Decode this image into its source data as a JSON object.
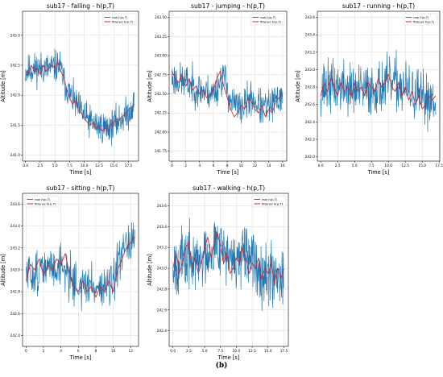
{
  "figure": {
    "caption": "(b)"
  },
  "colors": {
    "raw": "#1f77b4",
    "filtered": "#d62728",
    "grid": "#d9d9d9"
  },
  "chart_data": [
    {
      "type": "line",
      "title": "sub17 - falling - h(p,T)",
      "xlabel": "Time [s]",
      "ylabel": "Altitude [m]",
      "xlim": [
        -0.5,
        19.2
      ],
      "ylim": [
        240.9,
        243.4
      ],
      "xticks": [
        0.0,
        2.5,
        5.0,
        7.5,
        10.0,
        12.5,
        15.0,
        17.5
      ],
      "xticklabels": [
        "0.0",
        "2.5",
        "5.0",
        "7.5",
        "10.0",
        "12.5",
        "15.0",
        "17.5"
      ],
      "yticks": [
        241.0,
        241.5,
        242.0,
        242.5,
        243.0
      ],
      "yticklabels": [
        "241.0",
        "241.5",
        "242.0",
        "242.5",
        "243.0"
      ],
      "grid": true,
      "legend": "top-right",
      "series": [
        {
          "name": "raw h(p,T)",
          "kind": "raw",
          "noise": 0.23,
          "seed": 11,
          "n": 380,
          "trend": [
            [
              0,
              242.4
            ],
            [
              2,
              242.45
            ],
            [
              4,
              242.45
            ],
            [
              5.8,
              242.5
            ],
            [
              6.8,
              242.15
            ],
            [
              8.5,
              241.85
            ],
            [
              10.5,
              241.6
            ],
            [
              12,
              241.5
            ],
            [
              14,
              241.45
            ],
            [
              15.5,
              241.55
            ],
            [
              17.5,
              241.7
            ],
            [
              18.5,
              241.85
            ]
          ]
        },
        {
          "name": "filtered h(p,T)",
          "kind": "filtered",
          "x": [
            0,
            0.5,
            1,
            1.5,
            2,
            2.5,
            3,
            3.5,
            4,
            4.5,
            5,
            5.5,
            6,
            6.5,
            7,
            7.5,
            8,
            8.5,
            9,
            9.5,
            10,
            10.5,
            11,
            11.5,
            12,
            12.5,
            13,
            13.5,
            14,
            14.5,
            15,
            15.5,
            16,
            16.5,
            17,
            17.5,
            18,
            18.5
          ],
          "y": [
            242.4,
            242.35,
            242.5,
            242.4,
            242.45,
            242.35,
            242.5,
            242.4,
            242.45,
            242.5,
            242.45,
            242.55,
            242.4,
            242.3,
            242.1,
            241.95,
            241.85,
            241.9,
            241.75,
            241.7,
            241.6,
            241.55,
            241.5,
            241.55,
            241.45,
            241.5,
            241.4,
            241.45,
            241.4,
            241.5,
            241.55,
            241.6,
            241.6,
            241.65,
            241.7,
            241.75,
            241.8,
            241.85
          ]
        }
      ]
    },
    {
      "type": "line",
      "title": "sub17 - jumping - h(p,T)",
      "xlabel": "Time [s]",
      "ylabel": "Altitude [m]",
      "xlim": [
        -0.4,
        16.6
      ],
      "ylim": [
        241.62,
        243.58
      ],
      "xticks": [
        0,
        2,
        4,
        6,
        8,
        10,
        12,
        14,
        16
      ],
      "xticklabels": [
        "0",
        "2",
        "4",
        "6",
        "8",
        "10",
        "12",
        "14",
        "16"
      ],
      "yticks": [
        241.75,
        242.0,
        242.25,
        242.5,
        242.75,
        243.0,
        243.25,
        243.5
      ],
      "yticklabels": [
        "241.75",
        "242.00",
        "242.25",
        "242.50",
        "242.75",
        "243.00",
        "243.25",
        "243.50"
      ],
      "grid": true,
      "legend": "top-right",
      "series": [
        {
          "name": "raw h(p,T)",
          "kind": "raw",
          "noise": 0.2,
          "seed": 23,
          "n": 330,
          "trend": [
            [
              0,
              242.7
            ],
            [
              2,
              242.65
            ],
            [
              4,
              242.55
            ],
            [
              6,
              242.5
            ],
            [
              7.5,
              242.75
            ],
            [
              8.5,
              242.4
            ],
            [
              10,
              242.3
            ],
            [
              11.5,
              242.45
            ],
            [
              13,
              242.3
            ],
            [
              14.5,
              242.35
            ],
            [
              16,
              242.5
            ]
          ]
        },
        {
          "name": "filtered h(p,T)",
          "kind": "filtered",
          "x": [
            0,
            0.5,
            1,
            1.5,
            2,
            2.5,
            3,
            3.5,
            4,
            4.5,
            5,
            5.5,
            6,
            6.5,
            7,
            7.5,
            8,
            8.5,
            9,
            9.5,
            10,
            10.5,
            11,
            11.5,
            12,
            12.5,
            13,
            13.5,
            14,
            14.5,
            15,
            15.5,
            16
          ],
          "y": [
            242.8,
            242.7,
            242.65,
            242.75,
            242.6,
            242.7,
            242.55,
            242.6,
            242.5,
            242.55,
            242.45,
            242.5,
            242.55,
            242.7,
            242.8,
            242.6,
            242.45,
            242.3,
            242.2,
            242.25,
            242.35,
            242.3,
            242.45,
            242.4,
            242.3,
            242.25,
            242.35,
            242.2,
            242.3,
            242.25,
            242.4,
            242.45,
            242.5
          ]
        }
      ]
    },
    {
      "type": "line",
      "title": "sub17 - running - h(p,T)",
      "xlabel": "Time [s]",
      "ylabel": "Altitude [m]",
      "xlim": [
        -0.5,
        17.6
      ],
      "ylim": [
        241.95,
        243.67
      ],
      "xticks": [
        0.0,
        2.5,
        5.0,
        7.5,
        10.0,
        12.5,
        15.0,
        17.5
      ],
      "xticklabels": [
        "0.0",
        "2.5",
        "5.0",
        "7.5",
        "10.0",
        "12.5",
        "15.0",
        "17.5"
      ],
      "yticks": [
        242.0,
        242.2,
        242.4,
        242.6,
        242.8,
        243.0,
        243.2,
        243.4,
        243.6
      ],
      "yticklabels": [
        "242.0",
        "242.2",
        "242.4",
        "242.6",
        "242.8",
        "243.0",
        "243.2",
        "243.4",
        "243.6"
      ],
      "grid": true,
      "legend": "top-right",
      "series": [
        {
          "name": "raw h(p,T)",
          "kind": "raw",
          "noise": 0.26,
          "seed": 37,
          "n": 360,
          "trend": [
            [
              0,
              242.8
            ],
            [
              3,
              242.8
            ],
            [
              6,
              242.75
            ],
            [
              9,
              242.8
            ],
            [
              11,
              242.85
            ],
            [
              13,
              242.75
            ],
            [
              15,
              242.65
            ],
            [
              17,
              242.7
            ]
          ]
        },
        {
          "name": "filtered h(p,T)",
          "kind": "filtered",
          "x": [
            0,
            0.5,
            1,
            1.5,
            2,
            2.5,
            3,
            3.5,
            4,
            4.5,
            5,
            5.5,
            6,
            6.5,
            7,
            7.5,
            8,
            8.5,
            9,
            9.5,
            10,
            10.5,
            11,
            11.5,
            12,
            12.5,
            13,
            13.5,
            14,
            14.5,
            15,
            15.5,
            16,
            16.5,
            17
          ],
          "y": [
            242.7,
            242.85,
            242.75,
            242.9,
            242.8,
            242.7,
            242.85,
            242.75,
            242.8,
            242.7,
            242.85,
            242.75,
            242.8,
            242.7,
            242.85,
            242.8,
            242.75,
            242.9,
            242.8,
            242.85,
            242.95,
            242.8,
            242.75,
            242.85,
            242.7,
            242.8,
            242.65,
            242.75,
            242.6,
            242.7,
            242.55,
            242.6,
            242.7,
            242.65,
            242.7
          ]
        }
      ]
    },
    {
      "type": "line",
      "title": "sub17 - sitting - h(p,T)",
      "xlabel": "Time [s]",
      "ylabel": "Altitude [m]",
      "xlim": [
        -0.4,
        12.9
      ],
      "ylim": [
        242.3,
        243.7
      ],
      "xticks": [
        0,
        2,
        4,
        6,
        8,
        10,
        12
      ],
      "xticklabels": [
        "0",
        "2",
        "4",
        "6",
        "8",
        "10",
        "12"
      ],
      "yticks": [
        242.4,
        242.6,
        242.8,
        243.0,
        243.2,
        243.4,
        243.6
      ],
      "yticklabels": [
        "242.4",
        "242.6",
        "242.8",
        "243.0",
        "243.2",
        "243.4",
        "243.6"
      ],
      "grid": true,
      "legend": "top-left",
      "series": [
        {
          "name": "raw h(p,T)",
          "kind": "raw",
          "noise": 0.17,
          "seed": 51,
          "n": 280,
          "trend": [
            [
              0,
              242.95
            ],
            [
              2,
              243.0
            ],
            [
              4,
              243.05
            ],
            [
              5,
              242.95
            ],
            [
              6,
              242.85
            ],
            [
              8,
              242.85
            ],
            [
              10,
              242.85
            ],
            [
              10.6,
              243.05
            ],
            [
              11.5,
              243.2
            ],
            [
              12.5,
              243.3
            ]
          ]
        },
        {
          "name": "filtered h(p,T)",
          "kind": "filtered",
          "x": [
            0,
            0.5,
            1,
            1.5,
            2,
            2.5,
            3,
            3.5,
            4,
            4.5,
            5,
            5.5,
            6,
            6.5,
            7,
            7.5,
            8,
            8.5,
            9,
            9.5,
            10,
            10.5,
            11,
            11.5,
            12,
            12.5
          ],
          "y": [
            242.9,
            243.05,
            243.0,
            243.1,
            242.95,
            243.05,
            243.0,
            243.1,
            243.05,
            243.15,
            242.95,
            242.85,
            242.8,
            242.9,
            242.8,
            242.85,
            242.75,
            242.85,
            242.8,
            242.9,
            242.8,
            243.0,
            243.1,
            243.2,
            243.25,
            243.3
          ]
        }
      ]
    },
    {
      "type": "line",
      "title": "sub17 - walking - h(p,T)",
      "xlabel": "Time [s]",
      "ylabel": "Altitude [m]",
      "xlim": [
        -0.6,
        18.2
      ],
      "ylim": [
        242.25,
        243.72
      ],
      "xticks": [
        0.0,
        2.5,
        5.0,
        7.5,
        10.0,
        12.5,
        15.0,
        17.5
      ],
      "xticklabels": [
        "0.0",
        "2.5",
        "5.0",
        "7.5",
        "10.0",
        "12.5",
        "15.0",
        "17.5"
      ],
      "yticks": [
        242.4,
        242.6,
        242.8,
        243.0,
        243.2,
        243.4,
        243.6
      ],
      "yticklabels": [
        "242.4",
        "242.6",
        "242.8",
        "243.0",
        "243.2",
        "243.4",
        "243.6"
      ],
      "grid": true,
      "legend": "top-right",
      "series": [
        {
          "name": "raw h(p,T)",
          "kind": "raw",
          "noise": 0.25,
          "seed": 67,
          "n": 370,
          "trend": [
            [
              0,
              243.05
            ],
            [
              2.5,
              243.1
            ],
            [
              4,
              243.05
            ],
            [
              6,
              243.2
            ],
            [
              7.5,
              243.25
            ],
            [
              9,
              243.05
            ],
            [
              11,
              243.1
            ],
            [
              13,
              243.05
            ],
            [
              15,
              242.95
            ],
            [
              17.5,
              242.95
            ]
          ]
        },
        {
          "name": "filtered h(p,T)",
          "kind": "filtered",
          "x": [
            0,
            0.5,
            1,
            1.5,
            2,
            2.5,
            3,
            3.5,
            4,
            4.5,
            5,
            5.5,
            6,
            6.5,
            7,
            7.5,
            8,
            8.5,
            9,
            9.5,
            10,
            10.5,
            11,
            11.5,
            12,
            12.5,
            13,
            13.5,
            14,
            14.5,
            15,
            15.5,
            16,
            16.5,
            17,
            17.5
          ],
          "y": [
            243.0,
            243.15,
            242.95,
            243.05,
            243.2,
            243.25,
            243.0,
            243.1,
            242.95,
            243.05,
            243.2,
            243.3,
            243.1,
            243.25,
            243.35,
            243.2,
            243.05,
            243.15,
            242.95,
            243.0,
            243.1,
            243.05,
            243.2,
            243.1,
            242.95,
            243.05,
            243.0,
            243.1,
            242.9,
            243.0,
            242.95,
            243.05,
            242.85,
            243.0,
            242.9,
            243.0
          ]
        }
      ]
    }
  ]
}
